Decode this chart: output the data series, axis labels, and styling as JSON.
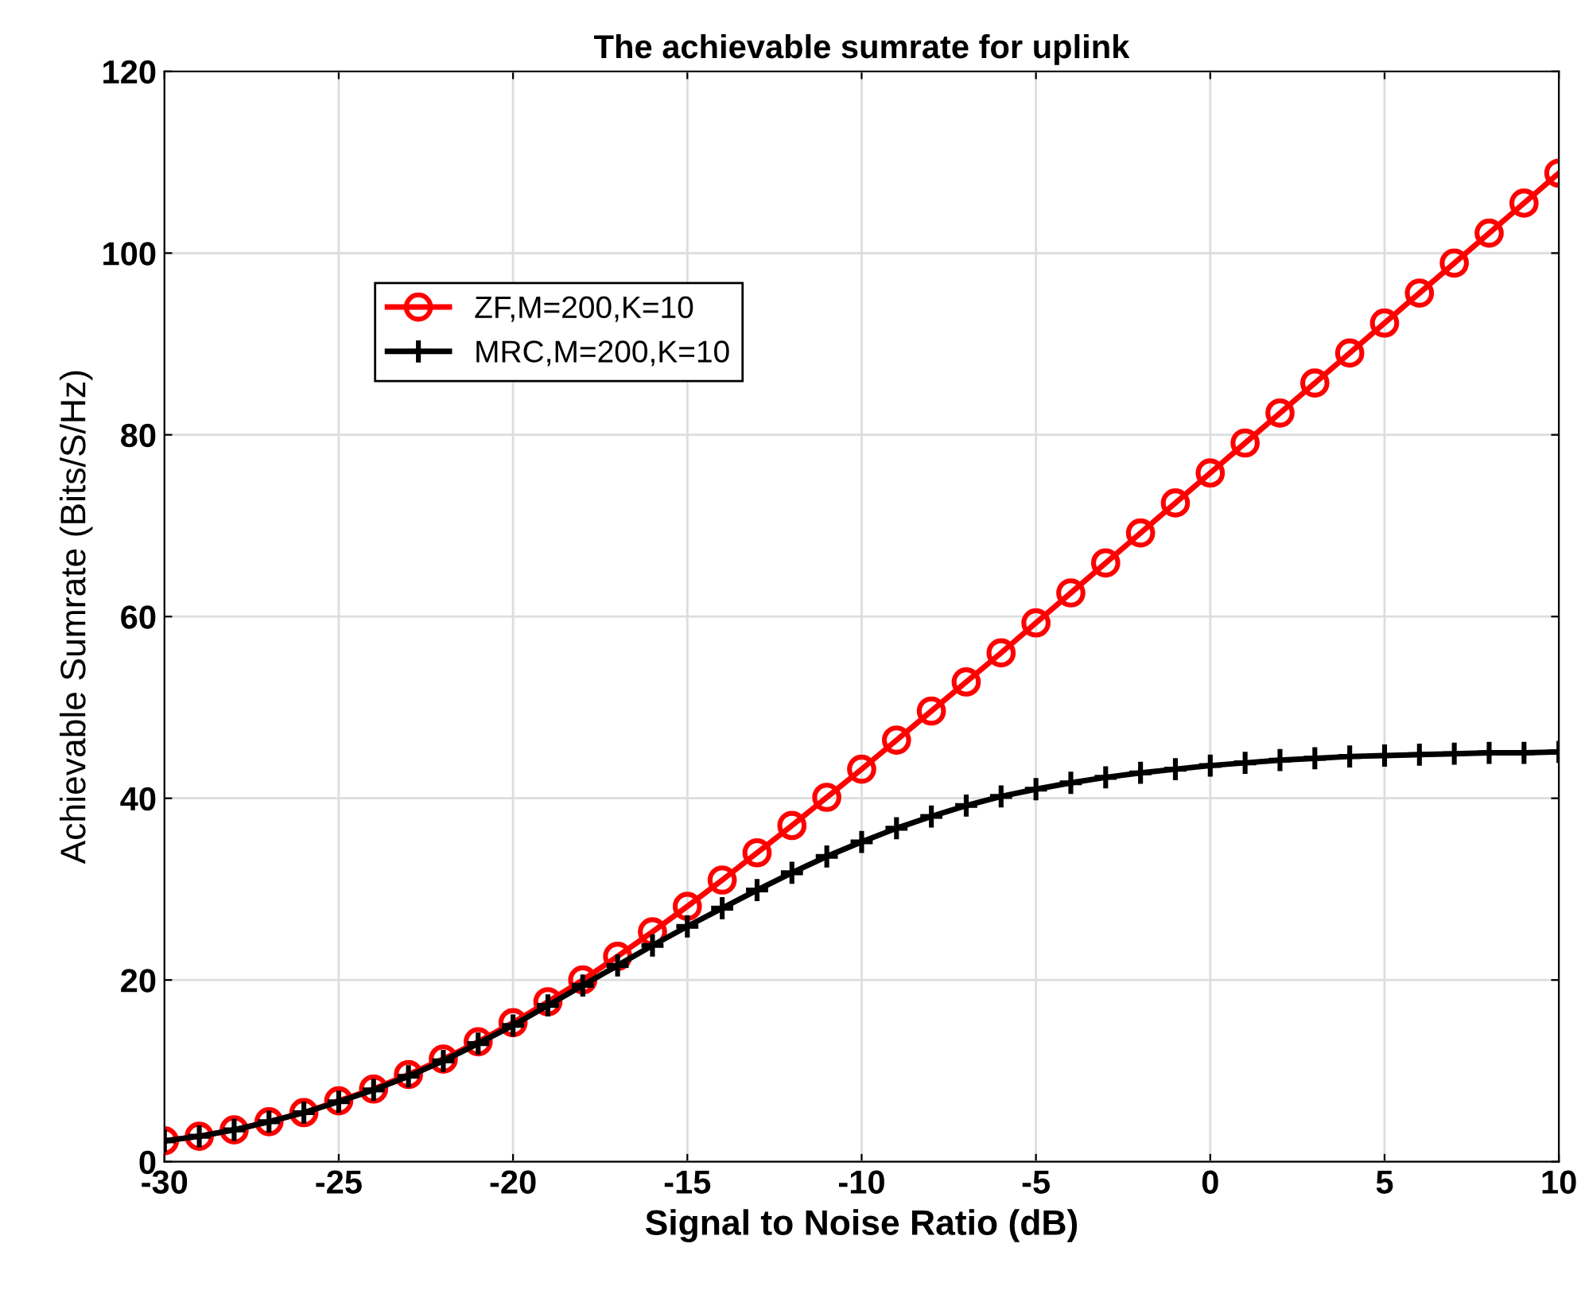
{
  "chart_data": {
    "type": "line",
    "title": "The achievable sumrate for uplink",
    "xlabel": "Signal to Noise Ratio (dB)",
    "ylabel": "Achievable Sumrate (Bits/S/Hz)",
    "x": [
      -30,
      -29,
      -28,
      -27,
      -26,
      -25,
      -24,
      -23,
      -22,
      -21,
      -20,
      -19,
      -18,
      -17,
      -16,
      -15,
      -14,
      -13,
      -12,
      -11,
      -10,
      -9,
      -8,
      -7,
      -6,
      -5,
      -4,
      -3,
      -2,
      -1,
      0,
      1,
      2,
      3,
      4,
      5,
      6,
      7,
      8,
      9,
      10
    ],
    "series": [
      {
        "name": "ZF,M=200,K=10",
        "color": "#ff0000",
        "marker": "circle",
        "values": [
          2.3,
          2.8,
          3.5,
          4.4,
          5.4,
          6.7,
          8.0,
          9.6,
          11.3,
          13.2,
          15.3,
          17.6,
          20.0,
          22.6,
          25.3,
          28.1,
          31.0,
          34.0,
          37.0,
          40.1,
          43.2,
          46.4,
          49.6,
          52.8,
          56.0,
          59.3,
          62.6,
          65.9,
          69.2,
          72.5,
          75.8,
          79.1,
          82.4,
          85.7,
          89.0,
          92.3,
          95.6,
          98.9,
          102.2,
          105.5,
          108.8
        ]
      },
      {
        "name": "MRC,M=200,K=10",
        "color": "#000000",
        "marker": "cross",
        "values": [
          2.3,
          2.8,
          3.5,
          4.4,
          5.4,
          6.6,
          7.9,
          9.4,
          11.1,
          13.0,
          15.0,
          17.2,
          19.4,
          21.6,
          23.8,
          25.9,
          27.9,
          29.9,
          31.8,
          33.6,
          35.2,
          36.7,
          38.0,
          39.2,
          40.2,
          41.0,
          41.7,
          42.3,
          42.8,
          43.2,
          43.6,
          43.9,
          44.2,
          44.4,
          44.6,
          44.7,
          44.8,
          44.9,
          45.0,
          45.0,
          45.1
        ]
      }
    ],
    "xlim": [
      -30,
      10
    ],
    "xticks": [
      -30,
      -25,
      -20,
      -15,
      -10,
      -5,
      0,
      5,
      10
    ],
    "ylim": [
      0,
      120
    ],
    "yticks": [
      0,
      20,
      40,
      60,
      80,
      100,
      120
    ],
    "grid": true,
    "legend": "top left",
    "line_style": "solid"
  }
}
